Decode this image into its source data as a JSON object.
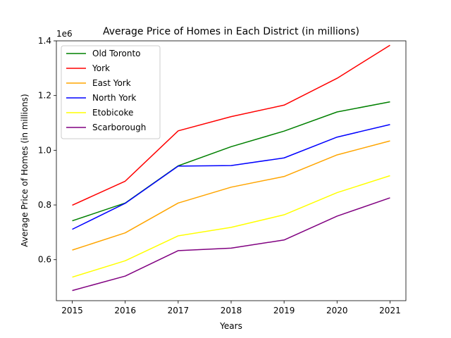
{
  "chart_data": {
    "type": "line",
    "title": "Average Price of Homes in Each District (in millions)",
    "xlabel": "Years",
    "ylabel": "Average Price of Homes (in millions)",
    "offset_label": "1e6",
    "x": [
      2015,
      2016,
      2017,
      2018,
      2019,
      2020,
      2021
    ],
    "xlim": [
      2014.7,
      2021.3
    ],
    "ylim": [
      450000,
      1400000
    ],
    "yticks": [
      600000,
      800000,
      1000000,
      1200000,
      1400000
    ],
    "ytick_labels": [
      "0.6",
      "0.8",
      "1.0",
      "1.2",
      "1.4"
    ],
    "grid": false,
    "legend_position": "upper left",
    "series": [
      {
        "name": "Old Toronto",
        "color": "#008000",
        "values": [
          742000,
          807000,
          943000,
          1013000,
          1070000,
          1140000,
          1177000
        ]
      },
      {
        "name": "York",
        "color": "#ff0000",
        "values": [
          799000,
          887000,
          1071000,
          1123000,
          1165000,
          1263000,
          1384000
        ]
      },
      {
        "name": "East York",
        "color": "#ffa500",
        "values": [
          635000,
          698000,
          807000,
          865000,
          904000,
          983000,
          1034000
        ]
      },
      {
        "name": "North York",
        "color": "#0000ff",
        "values": [
          711000,
          806000,
          942000,
          944000,
          972000,
          1048000,
          1094000
        ]
      },
      {
        "name": "Etobicoke",
        "color": "#ffff00",
        "values": [
          536000,
          596000,
          687000,
          718000,
          764000,
          845000,
          907000
        ]
      },
      {
        "name": "Scarborough",
        "color": "#800080",
        "values": [
          487000,
          540000,
          633000,
          642000,
          672000,
          759000,
          826000
        ]
      }
    ]
  }
}
